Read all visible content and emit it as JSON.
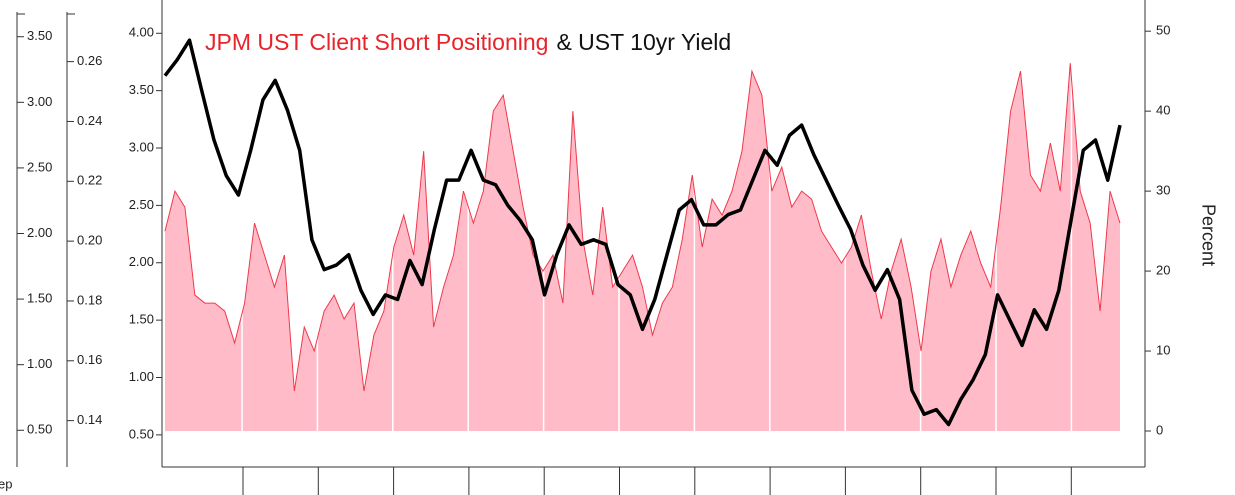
{
  "chart_data": {
    "type": "area_line",
    "title_parts": [
      {
        "text": "JPM UST Client Short Positioning",
        "color": "#e8232a"
      },
      {
        "text": "& UST 10yr Yield",
        "color": "#111111"
      }
    ],
    "xlabel": "ep",
    "y2label": "Percent",
    "ylim": [
      0.22,
      4.29
    ],
    "yticks": [
      {
        "value": 4,
        "label": "4.00"
      },
      {
        "value": 3.5,
        "label": "3.50"
      },
      {
        "value": 3,
        "label": "3.00"
      },
      {
        "value": 2.5,
        "label": "2.50"
      },
      {
        "value": 2,
        "label": "2.00"
      },
      {
        "value": 1.5,
        "label": "1.50"
      },
      {
        "value": 1,
        "label": "1.00"
      },
      {
        "value": 0.5,
        "label": "0.50"
      }
    ],
    "y2lim": [
      -4.5,
      53.9
    ],
    "y2ticks": [
      50,
      40,
      30,
      20,
      10,
      0
    ],
    "extra_axes": [
      {
        "ylim": [
          0.22,
          3.78
        ],
        "yticks": [
          {
            "value": 3.5,
            "label": "3.50"
          },
          {
            "value": 3,
            "label": "3.00"
          },
          {
            "value": 2.5,
            "label": "2.50"
          },
          {
            "value": 2,
            "label": "2.00"
          },
          {
            "value": 1.5,
            "label": "1.50"
          },
          {
            "value": 1,
            "label": "1.00"
          },
          {
            "value": 0.5,
            "label": "0.50"
          }
        ]
      },
      {
        "ylim": [
          0.1245,
          0.2806
        ],
        "yticks": [
          0.26,
          0.24,
          0.22,
          {
            "value": 0.2,
            "label": "0.20"
          },
          0.18,
          0.16,
          0.14
        ]
      }
    ],
    "series": [
      {
        "type": "area",
        "axis": "y2",
        "color": "#ffbcc8",
        "line_color": "#f0384c",
        "values": [
          25,
          30,
          28,
          17,
          16,
          16,
          15,
          11,
          16,
          26,
          22,
          18,
          22,
          5,
          13,
          10,
          15,
          17,
          14,
          16,
          5,
          12,
          15,
          23,
          27,
          22,
          35,
          13,
          18,
          22,
          30,
          26,
          30,
          40,
          42,
          35,
          28,
          22,
          20,
          22,
          16,
          40,
          24,
          17,
          28,
          18,
          20,
          22,
          18,
          12,
          16,
          18,
          24,
          32,
          23,
          29,
          27,
          30,
          35,
          45,
          42,
          30,
          33,
          28,
          30,
          29,
          25,
          23,
          21,
          23,
          27,
          20,
          14,
          20,
          24,
          18,
          10,
          20,
          24,
          18,
          22,
          25,
          21,
          18,
          28,
          40,
          45,
          32,
          30,
          36,
          30,
          46,
          30,
          26,
          15,
          30,
          26
        ]
      },
      {
        "type": "line",
        "axis": "y",
        "color": "#000000",
        "values": [
          3.63,
          3.77,
          3.94,
          3.5,
          3.07,
          2.76,
          2.59,
          2.98,
          3.42,
          3.59,
          3.33,
          2.98,
          2.2,
          1.94,
          1.98,
          2.07,
          1.76,
          1.55,
          1.72,
          1.68,
          2.02,
          1.81,
          2.29,
          2.72,
          2.72,
          2.98,
          2.72,
          2.68,
          2.5,
          2.37,
          2.2,
          1.72,
          2.07,
          2.33,
          2.16,
          2.2,
          2.16,
          1.81,
          1.72,
          1.42,
          1.68,
          2.07,
          2.46,
          2.55,
          2.33,
          2.33,
          2.42,
          2.46,
          2.72,
          2.98,
          2.85,
          3.11,
          3.2,
          2.94,
          2.72,
          2.5,
          2.29,
          1.98,
          1.76,
          1.94,
          1.68,
          0.89,
          0.68,
          0.72,
          0.59,
          0.81,
          0.98,
          1.2,
          1.72,
          1.5,
          1.28,
          1.59,
          1.42,
          1.76,
          2.37,
          2.98,
          3.07,
          2.72,
          3.2
        ]
      }
    ]
  }
}
